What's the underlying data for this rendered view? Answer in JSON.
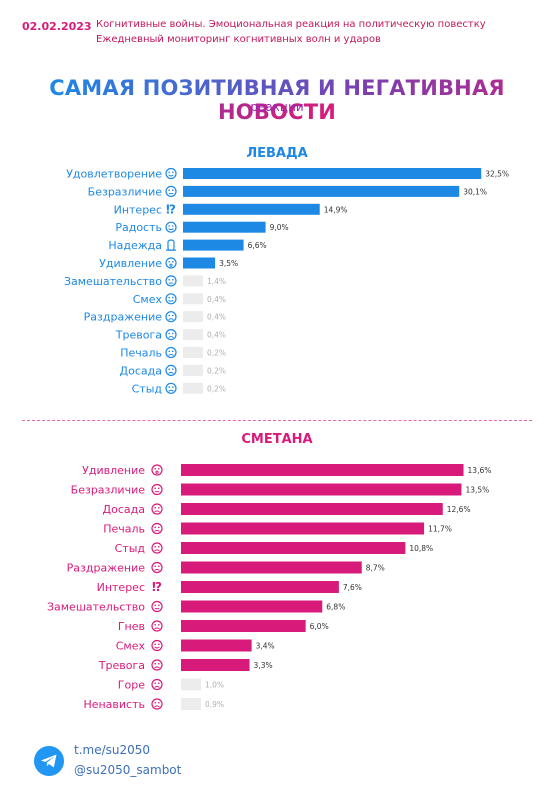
{
  "header": {
    "date": "02.02.2023",
    "subtitle_line1": "Когнитивные войны. Эмоциональная реакция на политическую повестку",
    "subtitle_line2": "Ежедневный мониторинг когнитивных волн и ударов"
  },
  "title": "САМАЯ ПОЗИТИВНАЯ И НЕГАТИВНАЯ НОВОСТИ",
  "title_sub": "реакции",
  "colors": {
    "blue": "#1e88e5",
    "pink": "#d81b7a",
    "faint": "#ececec"
  },
  "chart_data": [
    {
      "type": "bar",
      "orientation": "horizontal",
      "title": "ЛЕВАДА",
      "categories": [
        "Удовлетворение",
        "Безразличие",
        "Интерес",
        "Радость",
        "Надежда",
        "Удивление",
        "Замешательство",
        "Смех",
        "Раздражение",
        "Тревога",
        "Печаль",
        "Досада",
        "Стыд"
      ],
      "icons": [
        "smile-icon",
        "neutral-face-icon",
        "exclaim-question-icon",
        "joy-face-icon",
        "hope-icon",
        "surprise-face-icon",
        "confused-face-icon",
        "laugh-face-icon",
        "angry-face-icon",
        "worried-face-icon",
        "sad-face-icon",
        "annoyed-face-icon",
        "shame-face-icon"
      ],
      "values": [
        32.5,
        30.1,
        14.9,
        9.0,
        6.6,
        3.5,
        1.4,
        0.4,
        0.4,
        0.4,
        0.2,
        0.2,
        0.2
      ],
      "value_labels": [
        "32,5%",
        "30,1%",
        "14,9%",
        "9,0%",
        "6,6%",
        "3,5%",
        "1,4%",
        "0,4%",
        "0,4%",
        "0,4%",
        "0,2%",
        "0,2%",
        "0,2%"
      ],
      "xlim": [
        0,
        34
      ],
      "color": "#1e88e5"
    },
    {
      "type": "bar",
      "orientation": "horizontal",
      "title": "СМЕТАНА",
      "categories": [
        "Удивление",
        "Безразличие",
        "Досада",
        "Печаль",
        "Стыд",
        "Раздражение",
        "Интерес",
        "Замешательство",
        "Гнев",
        "Смех",
        "Тревога",
        "Горе",
        "Ненависть"
      ],
      "icons": [
        "surprise-face-icon",
        "neutral-face-icon",
        "annoyed-face-icon",
        "sad-face-icon",
        "shame-face-icon",
        "angry-face-icon",
        "exclaim-question-icon",
        "confused-face-icon",
        "rage-face-icon",
        "laugh-face-icon",
        "worried-face-icon",
        "grief-face-icon",
        "hate-face-icon"
      ],
      "values": [
        13.6,
        13.5,
        12.6,
        11.7,
        10.8,
        8.7,
        7.6,
        6.8,
        6.0,
        3.4,
        3.3,
        1.0,
        0.9
      ],
      "value_labels": [
        "13,6%",
        "13,5%",
        "12,6%",
        "11,7%",
        "10,8%",
        "8,7%",
        "7,6%",
        "6,8%",
        "6,0%",
        "3,4%",
        "3,3%",
        "1,0%",
        "0,9%"
      ],
      "xlim": [
        0,
        14.2
      ],
      "color": "#d81b7a"
    }
  ],
  "footer": {
    "link": "t.me/su2050",
    "bot": "@su2050_sambot"
  }
}
